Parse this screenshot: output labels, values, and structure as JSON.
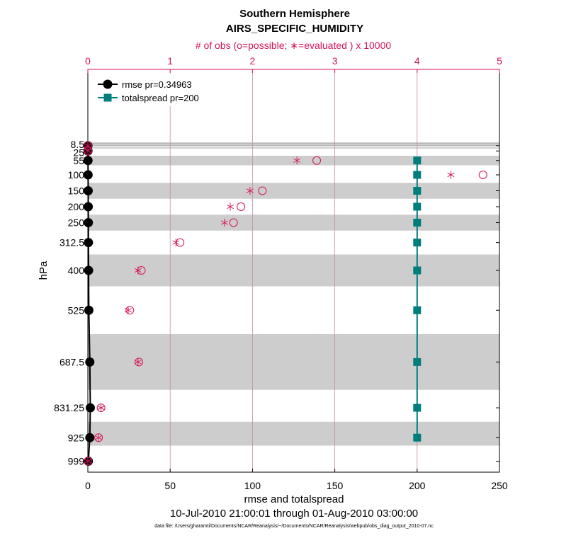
{
  "chart_data": {
    "type": "line",
    "title": "Southern Hemisphere",
    "subtitle": "AIRS_SPECIFIC_HUMIDITY",
    "top_axis_label": "# of obs (o=possible; ∗=evaluated ) x 10000",
    "top_axis_ticks": [
      "0",
      "1",
      "2",
      "3",
      "4",
      "5"
    ],
    "top_axis_range": [
      0,
      5
    ],
    "xlabel": "rmse and totalspread",
    "ylabel": "hPa",
    "xlim": [
      0,
      250
    ],
    "x_ticks": [
      "0",
      "50",
      "100",
      "150",
      "200",
      "250"
    ],
    "y_ticks": [
      "8.5",
      "25",
      "55",
      "100",
      "150",
      "200",
      "250",
      "312.5",
      "400",
      "525",
      "687.5",
      "831.25",
      "925",
      "999"
    ],
    "date_range": "10-Jul-2010 21:00:01 through 01-Aug-2010 03:00:00",
    "data_file": "data file: /Users/gharamti/Documents/NCAR/Reanalysis/~/Documents/NCAR/Reanalysis/webpub/obs_diag_output_2010-07.nc",
    "shaded_bands_hpa": [
      [
        0,
        10
      ],
      [
        40,
        70
      ],
      [
        125,
        175
      ],
      [
        225,
        275
      ],
      [
        350,
        450
      ],
      [
        600,
        775
      ],
      [
        875,
        950
      ]
    ],
    "series": [
      {
        "name": "rmse pr=0.34963",
        "color": "#000000",
        "marker": "circle",
        "levels": [
          8.5,
          25,
          55,
          100,
          150,
          200,
          250,
          312.5,
          400,
          525,
          687.5,
          831.25,
          925,
          999
        ],
        "values": [
          0.05,
          0.08,
          0.1,
          0.15,
          0.2,
          0.25,
          0.3,
          0.35,
          0.45,
          0.6,
          1.2,
          1.5,
          1.2,
          0.3
        ]
      },
      {
        "name": "totalspread pr=200",
        "color": "#007d7d",
        "marker": "square",
        "levels": [
          55,
          100,
          150,
          200,
          250,
          312.5,
          400,
          525,
          687.5,
          831.25,
          925
        ],
        "values": [
          200,
          200,
          200,
          200,
          200,
          200,
          200,
          200,
          200,
          200,
          200
        ]
      }
    ],
    "obs_counts_x10000": {
      "levels": [
        8.5,
        25,
        55,
        100,
        150,
        200,
        250,
        312.5,
        400,
        525,
        687.5,
        831.25,
        925,
        999
      ],
      "possible": [
        0.0,
        0.0,
        2.78,
        4.8,
        2.12,
        1.86,
        1.77,
        1.12,
        0.65,
        0.51,
        0.62,
        0.16,
        0.13,
        0.0
      ],
      "evaluated": [
        0.0,
        0.0,
        2.54,
        4.41,
        1.97,
        1.73,
        1.66,
        1.07,
        0.61,
        0.49,
        0.61,
        0.16,
        0.13,
        0.0
      ]
    }
  }
}
